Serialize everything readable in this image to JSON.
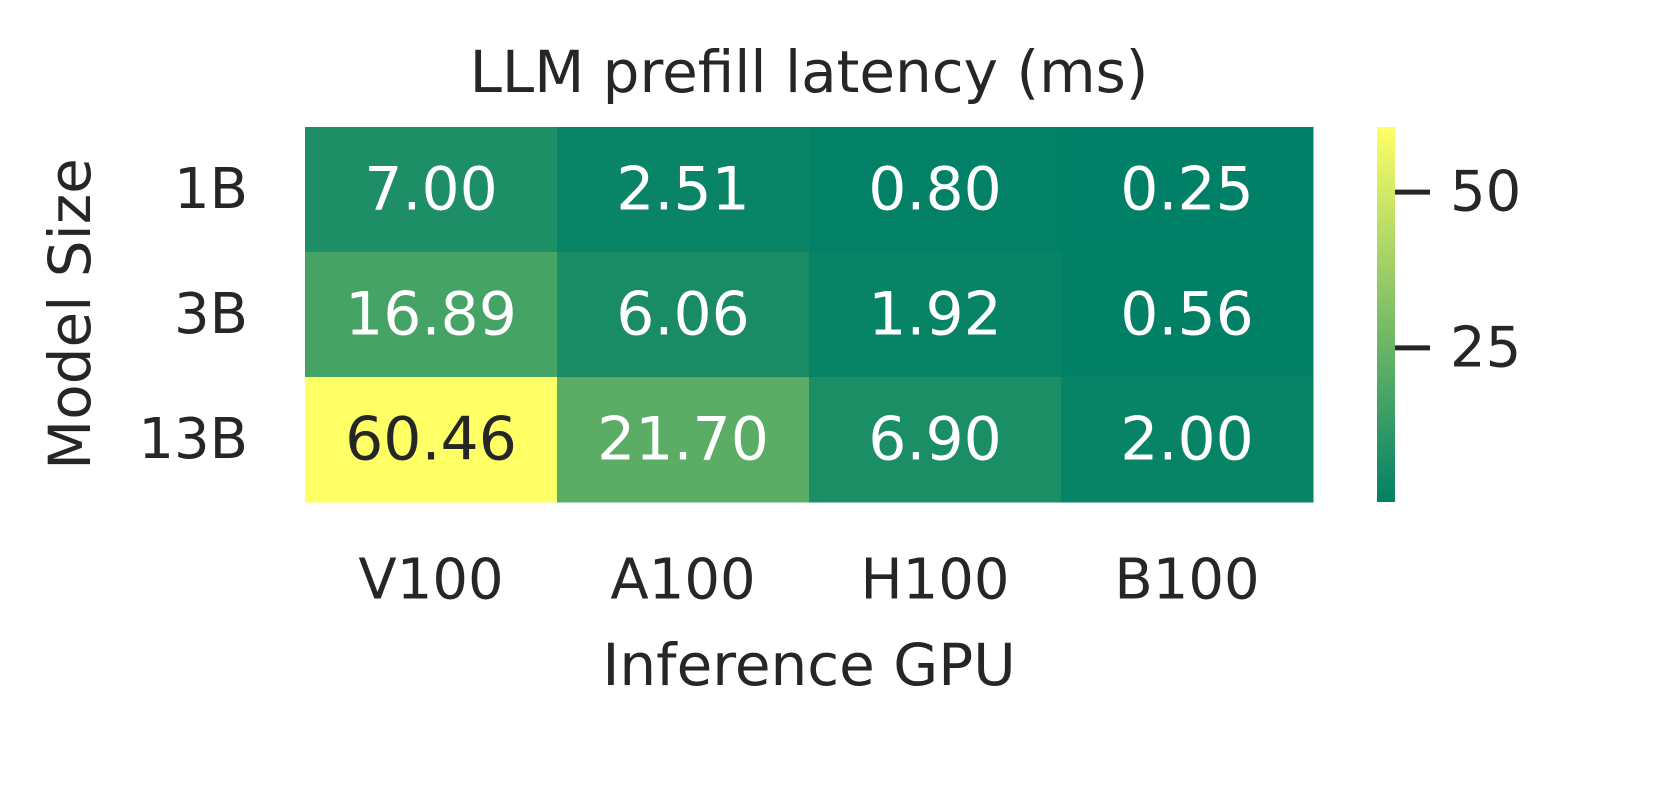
{
  "chart_data": {
    "type": "heatmap",
    "title": "LLM prefill latency (ms)",
    "x_label": "Inference GPU",
    "y_label": "Model Size",
    "categories": [
      "V100",
      "A100",
      "H100",
      "B100"
    ],
    "rows": [
      "1B",
      "3B",
      "13B"
    ],
    "values": [
      [
        7.0,
        2.51,
        0.8,
        0.25
      ],
      [
        16.89,
        6.06,
        1.92,
        0.56
      ],
      [
        60.46,
        21.7,
        6.9,
        2.0
      ]
    ],
    "value_labels": [
      [
        "7.00",
        "2.51",
        "0.80",
        "0.25"
      ],
      [
        "16.89",
        "6.06",
        "1.92",
        "0.56"
      ],
      [
        "60.46",
        "21.70",
        "6.90",
        "2.00"
      ]
    ],
    "colormap": "summer",
    "clim": [
      0.25,
      60.46
    ],
    "cticks": [
      25,
      50
    ]
  }
}
